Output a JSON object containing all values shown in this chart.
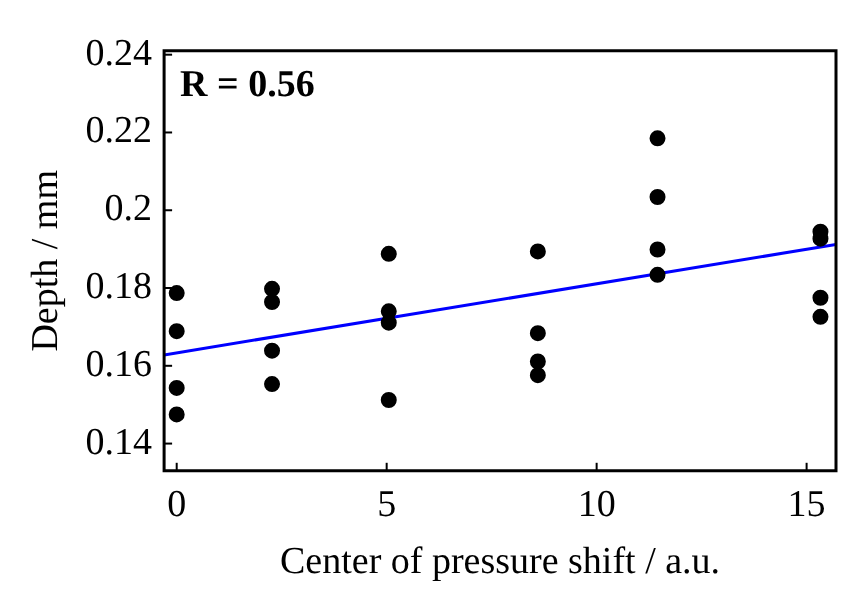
{
  "chart_data": {
    "type": "scatter",
    "xlabel": "Center of pressure shift / a.u.",
    "ylabel": "Depth / mm",
    "annotations": [
      "R = 0.56"
    ],
    "xlim": [
      -0.3,
      15.7
    ],
    "xticks": [
      0,
      5,
      10,
      15
    ],
    "ylim": [
      0.133,
      0.241
    ],
    "yticks": [
      0.14,
      0.16,
      0.18,
      0.2,
      0.22,
      0.24
    ],
    "grid": false,
    "legend": false,
    "marker": "circle",
    "series": [
      {
        "color": "#000000",
        "x": [
          0,
          0,
          0,
          0,
          2.27,
          2.27,
          2.27,
          2.27,
          5.05,
          5.05,
          5.05,
          5.05,
          8.6,
          8.6,
          8.6,
          8.6,
          11.45,
          11.45,
          11.45,
          11.45,
          15.33,
          15.33,
          15.33,
          15.33
        ],
        "values": [
          0.1787,
          0.1689,
          0.1543,
          0.1475,
          0.1798,
          0.1764,
          0.1639,
          0.1553,
          0.1888,
          0.174,
          0.1711,
          0.1512,
          0.1894,
          0.1684,
          0.1611,
          0.1576,
          0.2185,
          0.2034,
          0.1899,
          0.1834,
          0.1945,
          0.1927,
          0.1775,
          0.1726
        ]
      },
      {
        "type": "line",
        "color": "#0000ff",
        "line_style": "solid",
        "marker": "none",
        "x": [
          -0.3,
          15.7
        ],
        "values": [
          0.1628,
          0.1912
        ]
      }
    ]
  }
}
